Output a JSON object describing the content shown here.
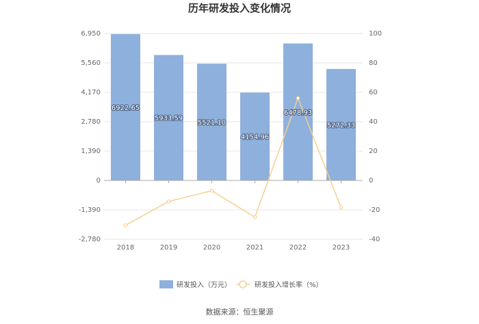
{
  "chart_data": {
    "type": "bar",
    "title": "历年研发投入变化情况",
    "categories": [
      "2018",
      "2019",
      "2020",
      "2021",
      "2022",
      "2023"
    ],
    "series": [
      {
        "name": "研发投入（万元）",
        "type": "bar",
        "axis": "left",
        "values": [
          6922.65,
          5933.59,
          5521.1,
          4154.96,
          6478.93,
          5272.33
        ],
        "labels": [
          "6922.65",
          "5933.59",
          "5521.10",
          "4154.96",
          "6478.93",
          "5272.33"
        ],
        "color": "#8eb0dc"
      },
      {
        "name": "研发投入增长率（%）",
        "type": "line",
        "axis": "right",
        "values": [
          -30.5,
          -14.3,
          -7.0,
          -25.0,
          56.0,
          -18.6
        ],
        "color": "#f7cf8f"
      }
    ],
    "left_axis": {
      "ticks": [
        6950,
        5560,
        4170,
        2780,
        1390,
        0,
        -1390,
        -2780
      ],
      "tick_labels": [
        "6,950",
        "5,560",
        "4,170",
        "2,780",
        "1,390",
        "0",
        "-1,390",
        "-2,780"
      ],
      "ylim": [
        -2780,
        6950
      ]
    },
    "right_axis": {
      "ticks": [
        100,
        80,
        60,
        40,
        20,
        0,
        -20,
        -40
      ],
      "tick_labels": [
        "100",
        "80",
        "60",
        "40",
        "20",
        "0",
        "-20",
        "-40"
      ],
      "ylim": [
        -40,
        100
      ]
    },
    "grid": true,
    "legend_position": "bottom"
  },
  "source": "数据来源：恒生聚源"
}
